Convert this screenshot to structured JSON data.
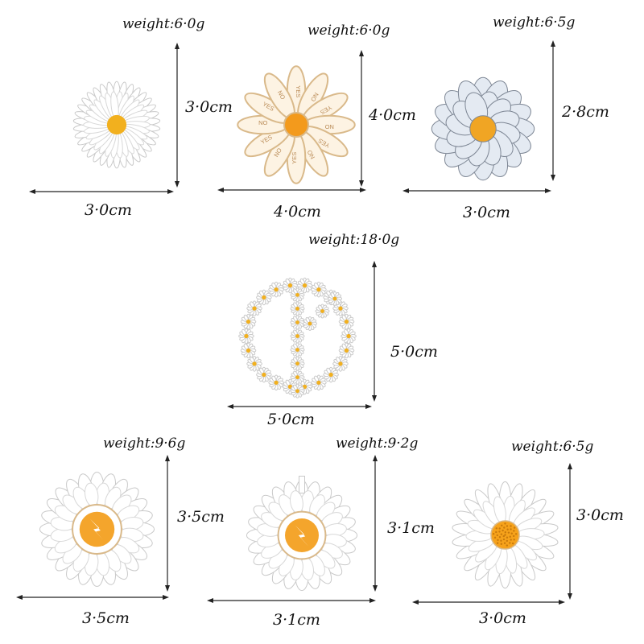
{
  "products": [
    {
      "weight": "weight:6·0g",
      "height": "3·0cm",
      "width": "3·0cm",
      "style": "classic",
      "petal": "#ffffff",
      "center": "#f2b01e"
    },
    {
      "weight": "weight:6·0g",
      "height": "4·0cm",
      "width": "4·0cm",
      "style": "yesno",
      "petal": "#fdf3e3",
      "center": "#f39a1c",
      "petal_text": [
        "YES",
        "NO"
      ]
    },
    {
      "weight": "weight:6·5g",
      "height": "2·8cm",
      "width": "3·0cm",
      "style": "layered",
      "petal": "#e4eaf2",
      "center": "#f0a524"
    },
    {
      "weight": "weight:18·0g",
      "height": "5·0cm",
      "width": "5·0cm",
      "style": "peace",
      "petal": "#ffffff",
      "center": "#f2b01e"
    },
    {
      "weight": "weight:9·6g",
      "height": "3·5cm",
      "width": "3·5cm",
      "style": "emblem",
      "petal": "#ffffff",
      "center": "#f4a52c"
    },
    {
      "weight": "weight:9·2g",
      "height": "3·1cm",
      "width": "3·1cm",
      "style": "emblem2",
      "petal": "#ffffff",
      "center": "#f4a52c"
    },
    {
      "weight": "weight:6·5g",
      "height": "3·0cm",
      "width": "3·0cm",
      "style": "dotted",
      "petal": "#ffffff",
      "center": "#f6a21b"
    }
  ],
  "colors": {
    "outline": "#c9c9c9",
    "gold": "#d9b98a",
    "arrow": "#222222"
  }
}
